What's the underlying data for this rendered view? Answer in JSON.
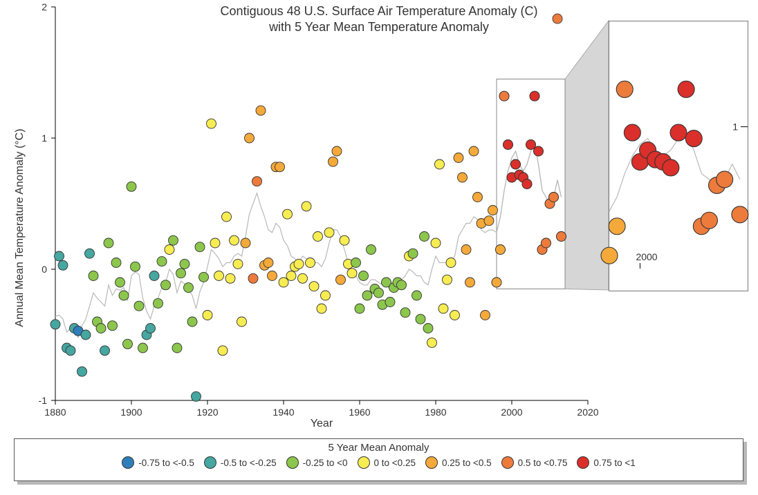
{
  "title_line1": "Contiguous 48 U.S. Surface Air Temperature Anomaly (C)",
  "title_line2": "with 5 Year Mean Temperature Anomaly",
  "title_fontsize": 18,
  "x_axis": {
    "label": "Year",
    "min": 1880,
    "max": 2020,
    "ticks": [
      1880,
      1900,
      1920,
      1940,
      1960,
      1980,
      2000,
      2020
    ],
    "label_fontsize": 16,
    "tick_fontsize": 14
  },
  "y_axis": {
    "label": "Annual Mean Temperature Anomaly (°C)",
    "min": -1,
    "max": 2,
    "ticks": [
      -1,
      0,
      1,
      2
    ],
    "label_fontsize": 16,
    "tick_fontsize": 14
  },
  "colors": {
    "background": "#ffffff",
    "axis": "#000000",
    "text": "#333333",
    "mean_line": "#b8b8b8",
    "inset_fill": "#d0d0d0",
    "inset_stroke": "#888888",
    "marker_stroke": "#333333",
    "legend_border": "#555555",
    "legend_shadow": "#333333"
  },
  "marker_radius": 7,
  "marker_stroke_width": 0.9,
  "bins": [
    {
      "label": "-0.75 to <-0.5",
      "min": -0.75,
      "max": -0.5,
      "color": "#2E7EBB"
    },
    {
      "label": "-0.5 to <-0.25",
      "min": -0.5,
      "max": -0.25,
      "color": "#46A6A0"
    },
    {
      "label": "-0.25 to <0",
      "min": -0.25,
      "max": 0,
      "color": "#8CC64C"
    },
    {
      "label": "0 to <0.25",
      "min": 0,
      "max": 0.25,
      "color": "#F7EC52"
    },
    {
      "label": "0.25 to <0.5",
      "min": 0.25,
      "max": 0.5,
      "color": "#F4A93A"
    },
    {
      "label": "0.5 to <0.75",
      "min": 0.5,
      "max": 0.75,
      "color": "#ED7B3C"
    },
    {
      "label": "0.75 to <1",
      "min": 0.75,
      "max": 1.0,
      "color": "#DA2F2A"
    }
  ],
  "legend_title": "5 Year Mean Anomaly",
  "inset_main": {
    "x_min": 1996,
    "x_max": 2014,
    "y_min": -0.15,
    "y_max": 1.45
  },
  "zoom_panel": {
    "x_min": 1996,
    "x_max": 2014,
    "y_min": -0.4,
    "y_max": 1.9,
    "marker_radius": 12,
    "ticks_x": [
      2000
    ],
    "x_tick_label": "2000",
    "ticks_y": [
      1
    ],
    "y_tick_label": "1"
  },
  "series": [
    {
      "year": 1880,
      "annual": -0.42,
      "mean5": -0.36
    },
    {
      "year": 1881,
      "annual": 0.1,
      "mean5": -0.35
    },
    {
      "year": 1882,
      "annual": 0.03,
      "mean5": -0.38
    },
    {
      "year": 1883,
      "annual": -0.6,
      "mean5": -0.48
    },
    {
      "year": 1884,
      "annual": -0.62,
      "mean5": -0.45
    },
    {
      "year": 1885,
      "annual": -0.45,
      "mean5": -0.46
    },
    {
      "year": 1886,
      "annual": -0.47,
      "mean5": -0.52
    },
    {
      "year": 1887,
      "annual": -0.78,
      "mean5": -0.43
    },
    {
      "year": 1888,
      "annual": -0.5,
      "mean5": -0.38
    },
    {
      "year": 1889,
      "annual": 0.12,
      "mean5": -0.28
    },
    {
      "year": 1890,
      "annual": -0.05,
      "mean5": -0.18
    },
    {
      "year": 1891,
      "annual": -0.4,
      "mean5": -0.22
    },
    {
      "year": 1892,
      "annual": -0.45,
      "mean5": -0.25
    },
    {
      "year": 1893,
      "annual": -0.62,
      "mean5": -0.28
    },
    {
      "year": 1894,
      "annual": 0.2,
      "mean5": -0.12
    },
    {
      "year": 1895,
      "annual": -0.43,
      "mean5": -0.2
    },
    {
      "year": 1896,
      "annual": 0.05,
      "mean5": -0.15
    },
    {
      "year": 1897,
      "annual": -0.1,
      "mean5": -0.16
    },
    {
      "year": 1898,
      "annual": -0.2,
      "mean5": -0.14
    },
    {
      "year": 1899,
      "annual": -0.57,
      "mean5": -0.24
    },
    {
      "year": 1900,
      "annual": 0.63,
      "mean5": -0.05
    },
    {
      "year": 1901,
      "annual": 0.02,
      "mean5": -0.02
    },
    {
      "year": 1902,
      "annual": -0.28,
      "mean5": -0.04
    },
    {
      "year": 1903,
      "annual": -0.6,
      "mean5": -0.22
    },
    {
      "year": 1904,
      "annual": -0.5,
      "mean5": -0.32
    },
    {
      "year": 1905,
      "annual": -0.45,
      "mean5": -0.38
    },
    {
      "year": 1906,
      "annual": -0.05,
      "mean5": -0.28
    },
    {
      "year": 1907,
      "annual": -0.26,
      "mean5": -0.22
    },
    {
      "year": 1908,
      "annual": 0.06,
      "mean5": -0.14
    },
    {
      "year": 1909,
      "annual": -0.12,
      "mean5": -0.1
    },
    {
      "year": 1910,
      "annual": 0.15,
      "mean5": 0.0
    },
    {
      "year": 1911,
      "annual": 0.22,
      "mean5": -0.04
    },
    {
      "year": 1912,
      "annual": -0.6,
      "mean5": -0.18
    },
    {
      "year": 1913,
      "annual": -0.03,
      "mean5": -0.09
    },
    {
      "year": 1914,
      "annual": 0.04,
      "mean5": -0.11
    },
    {
      "year": 1915,
      "annual": -0.14,
      "mean5": -0.15
    },
    {
      "year": 1916,
      "annual": -0.4,
      "mean5": -0.2
    },
    {
      "year": 1917,
      "annual": -0.97,
      "mean5": -0.3
    },
    {
      "year": 1918,
      "annual": 0.17,
      "mean5": -0.17
    },
    {
      "year": 1919,
      "annual": -0.06,
      "mean5": -0.1
    },
    {
      "year": 1920,
      "annual": -0.35,
      "mean5": 0.02
    },
    {
      "year": 1921,
      "annual": 1.11,
      "mean5": 0.15
    },
    {
      "year": 1922,
      "annual": 0.2,
      "mean5": 0.12
    },
    {
      "year": 1923,
      "annual": -0.05,
      "mean5": 0.08
    },
    {
      "year": 1924,
      "annual": -0.62,
      "mean5": 0.02
    },
    {
      "year": 1925,
      "annual": 0.4,
      "mean5": 0.05
    },
    {
      "year": 1926,
      "annual": -0.07,
      "mean5": 0.05
    },
    {
      "year": 1927,
      "annual": 0.22,
      "mean5": 0.1
    },
    {
      "year": 1928,
      "annual": 0.04,
      "mean5": 0.12
    },
    {
      "year": 1929,
      "annual": -0.4,
      "mean5": 0.1
    },
    {
      "year": 1930,
      "annual": 0.2,
      "mean5": 0.25
    },
    {
      "year": 1931,
      "annual": 1.0,
      "mean5": 0.42
    },
    {
      "year": 1932,
      "annual": -0.07,
      "mean5": 0.5
    },
    {
      "year": 1933,
      "annual": 0.67,
      "mean5": 0.58
    },
    {
      "year": 1934,
      "annual": 1.21,
      "mean5": 0.48
    },
    {
      "year": 1935,
      "annual": 0.03,
      "mean5": 0.4
    },
    {
      "year": 1936,
      "annual": 0.05,
      "mean5": 0.3
    },
    {
      "year": 1937,
      "annual": -0.05,
      "mean5": 0.28
    },
    {
      "year": 1938,
      "annual": 0.78,
      "mean5": 0.35
    },
    {
      "year": 1939,
      "annual": 0.78,
      "mean5": 0.32
    },
    {
      "year": 1940,
      "annual": -0.1,
      "mean5": 0.22
    },
    {
      "year": 1941,
      "annual": 0.42,
      "mean5": 0.18
    },
    {
      "year": 1942,
      "annual": -0.05,
      "mean5": 0.1
    },
    {
      "year": 1943,
      "annual": 0.02,
      "mean5": 0.08
    },
    {
      "year": 1944,
      "annual": 0.04,
      "mean5": 0.05
    },
    {
      "year": 1945,
      "annual": -0.07,
      "mean5": 0.1
    },
    {
      "year": 1946,
      "annual": 0.48,
      "mean5": 0.08
    },
    {
      "year": 1947,
      "annual": 0.05,
      "mean5": 0.05
    },
    {
      "year": 1948,
      "annual": -0.13,
      "mean5": 0.05
    },
    {
      "year": 1949,
      "annual": 0.25,
      "mean5": 0.05
    },
    {
      "year": 1950,
      "annual": -0.3,
      "mean5": 0.02
    },
    {
      "year": 1951,
      "annual": -0.2,
      "mean5": 0.08
    },
    {
      "year": 1952,
      "annual": 0.28,
      "mean5": 0.2
    },
    {
      "year": 1953,
      "annual": 0.82,
      "mean5": 0.3
    },
    {
      "year": 1954,
      "annual": 0.9,
      "mean5": 0.3
    },
    {
      "year": 1955,
      "annual": -0.08,
      "mean5": 0.25
    },
    {
      "year": 1956,
      "annual": 0.22,
      "mean5": 0.15
    },
    {
      "year": 1957,
      "annual": 0.04,
      "mean5": 0.05
    },
    {
      "year": 1958,
      "annual": -0.03,
      "mean5": 0.0
    },
    {
      "year": 1959,
      "annual": 0.05,
      "mean5": -0.05
    },
    {
      "year": 1960,
      "annual": -0.3,
      "mean5": -0.1
    },
    {
      "year": 1961,
      "annual": -0.05,
      "mean5": -0.12
    },
    {
      "year": 1962,
      "annual": -0.2,
      "mean5": -0.12
    },
    {
      "year": 1963,
      "annual": 0.15,
      "mean5": -0.08
    },
    {
      "year": 1964,
      "annual": -0.15,
      "mean5": -0.08
    },
    {
      "year": 1965,
      "annual": -0.18,
      "mean5": -0.1
    },
    {
      "year": 1966,
      "annual": -0.27,
      "mean5": -0.12
    },
    {
      "year": 1967,
      "annual": -0.1,
      "mean5": -0.12
    },
    {
      "year": 1968,
      "annual": -0.25,
      "mean5": -0.15
    },
    {
      "year": 1969,
      "annual": -0.14,
      "mean5": -0.12
    },
    {
      "year": 1970,
      "annual": -0.1,
      "mean5": -0.08
    },
    {
      "year": 1971,
      "annual": -0.12,
      "mean5": -0.08
    },
    {
      "year": 1972,
      "annual": -0.33,
      "mean5": -0.05
    },
    {
      "year": 1973,
      "annual": 0.1,
      "mean5": 0.0
    },
    {
      "year": 1974,
      "annual": 0.12,
      "mean5": -0.02
    },
    {
      "year": 1975,
      "annual": -0.2,
      "mean5": -0.05
    },
    {
      "year": 1976,
      "annual": -0.38,
      "mean5": -0.05
    },
    {
      "year": 1977,
      "annual": 0.25,
      "mean5": -0.1
    },
    {
      "year": 1978,
      "annual": -0.45,
      "mean5": -0.12
    },
    {
      "year": 1979,
      "annual": -0.56,
      "mean5": 0.0
    },
    {
      "year": 1980,
      "annual": 0.2,
      "mean5": 0.1
    },
    {
      "year": 1981,
      "annual": 0.8,
      "mean5": 0.05
    },
    {
      "year": 1982,
      "annual": -0.3,
      "mean5": 0.05
    },
    {
      "year": 1983,
      "annual": -0.08,
      "mean5": 0.05
    },
    {
      "year": 1984,
      "annual": 0.05,
      "mean5": 0.05
    },
    {
      "year": 1985,
      "annual": -0.35,
      "mean5": 0.1
    },
    {
      "year": 1986,
      "annual": 0.85,
      "mean5": 0.25
    },
    {
      "year": 1987,
      "annual": 0.7,
      "mean5": 0.3
    },
    {
      "year": 1988,
      "annual": 0.15,
      "mean5": 0.35
    },
    {
      "year": 1989,
      "annual": -0.1,
      "mean5": 0.35
    },
    {
      "year": 1990,
      "annual": 0.9,
      "mean5": 0.4
    },
    {
      "year": 1991,
      "annual": 0.55,
      "mean5": 0.38
    },
    {
      "year": 1992,
      "annual": 0.35,
      "mean5": 0.3
    },
    {
      "year": 1993,
      "annual": -0.35,
      "mean5": 0.28
    },
    {
      "year": 1994,
      "annual": 0.37,
      "mean5": 0.3
    },
    {
      "year": 1995,
      "annual": 0.45,
      "mean5": 0.3
    },
    {
      "year": 1996,
      "annual": -0.1,
      "mean5": 0.28
    },
    {
      "year": 1997,
      "annual": 0.15,
      "mean5": 0.4
    },
    {
      "year": 1998,
      "annual": 1.32,
      "mean5": 0.6
    },
    {
      "year": 1999,
      "annual": 0.95,
      "mean5": 0.75
    },
    {
      "year": 2000,
      "annual": 0.7,
      "mean5": 0.85
    },
    {
      "year": 2001,
      "annual": 0.8,
      "mean5": 0.9
    },
    {
      "year": 2002,
      "annual": 0.72,
      "mean5": 0.8
    },
    {
      "year": 2003,
      "annual": 0.7,
      "mean5": 0.75
    },
    {
      "year": 2004,
      "annual": 0.65,
      "mean5": 0.8
    },
    {
      "year": 2005,
      "annual": 0.95,
      "mean5": 0.9
    },
    {
      "year": 2006,
      "annual": 1.32,
      "mean5": 0.95
    },
    {
      "year": 2007,
      "annual": 0.9,
      "mean5": 0.8
    },
    {
      "year": 2008,
      "annual": 0.15,
      "mean5": 0.6
    },
    {
      "year": 2009,
      "annual": 0.2,
      "mean5": 0.55
    },
    {
      "year": 2010,
      "annual": 0.5,
      "mean5": 0.5
    },
    {
      "year": 2011,
      "annual": 0.55,
      "mean5": 0.55
    },
    {
      "year": 2012,
      "annual": 1.91,
      "mean5": 0.68
    },
    {
      "year": 2013,
      "annual": 0.25,
      "mean5": 0.55
    }
  ]
}
